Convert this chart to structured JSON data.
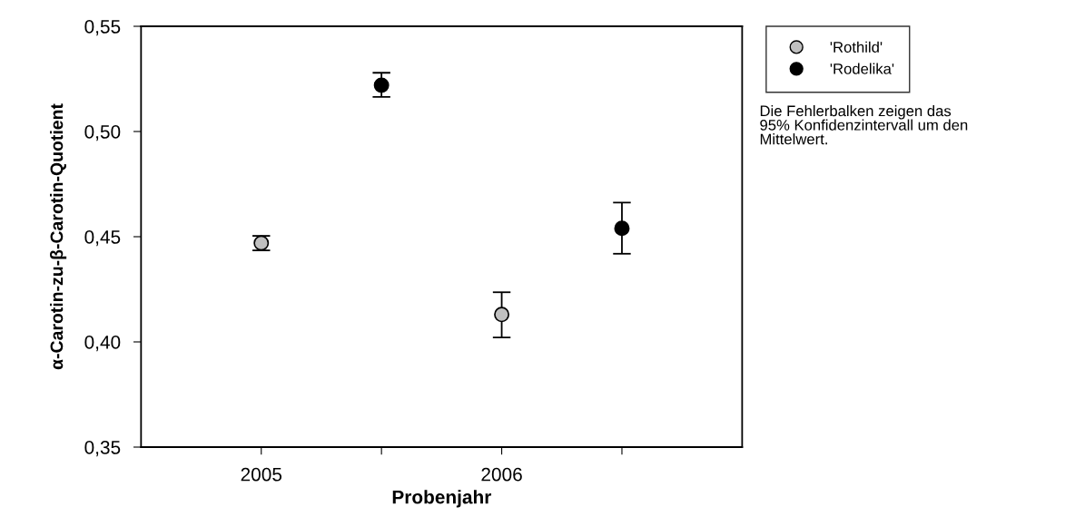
{
  "chart_data": {
    "type": "scatter",
    "xlabel": "Probenjahr",
    "ylabel": "α-Carotin-zu-β-Carotin-Quotient",
    "categories": [
      "2005",
      null,
      "2006",
      null
    ],
    "ylim": [
      0.35,
      0.55
    ],
    "yticks": [
      {
        "value": 0.35,
        "label": "0,35"
      },
      {
        "value": 0.4,
        "label": "0,40"
      },
      {
        "value": 0.45,
        "label": "0,45"
      },
      {
        "value": 0.5,
        "label": "0,50"
      },
      {
        "value": 0.55,
        "label": "0,55"
      }
    ],
    "series": [
      {
        "name": "'Rothild'",
        "color": "#c0c0c0",
        "values": [
          0.447,
          null,
          0.413,
          null
        ],
        "errors": [
          [
            0.4435,
            0.4504
          ],
          null,
          [
            0.4021,
            0.4236
          ],
          null
        ]
      },
      {
        "name": "'Rodelika'",
        "color": "#000000",
        "values": [
          null,
          0.522,
          null,
          0.454
        ],
        "errors": [
          null,
          [
            0.5164,
            0.5279
          ],
          null,
          [
            0.4419,
            0.4662
          ]
        ]
      }
    ],
    "marker": "circle",
    "grid": false,
    "legend": "top right",
    "annotations": [
      "Die Fehlerbalken zeigen das\n95% Konfidenzintervall um den\nMittelwert."
    ]
  }
}
